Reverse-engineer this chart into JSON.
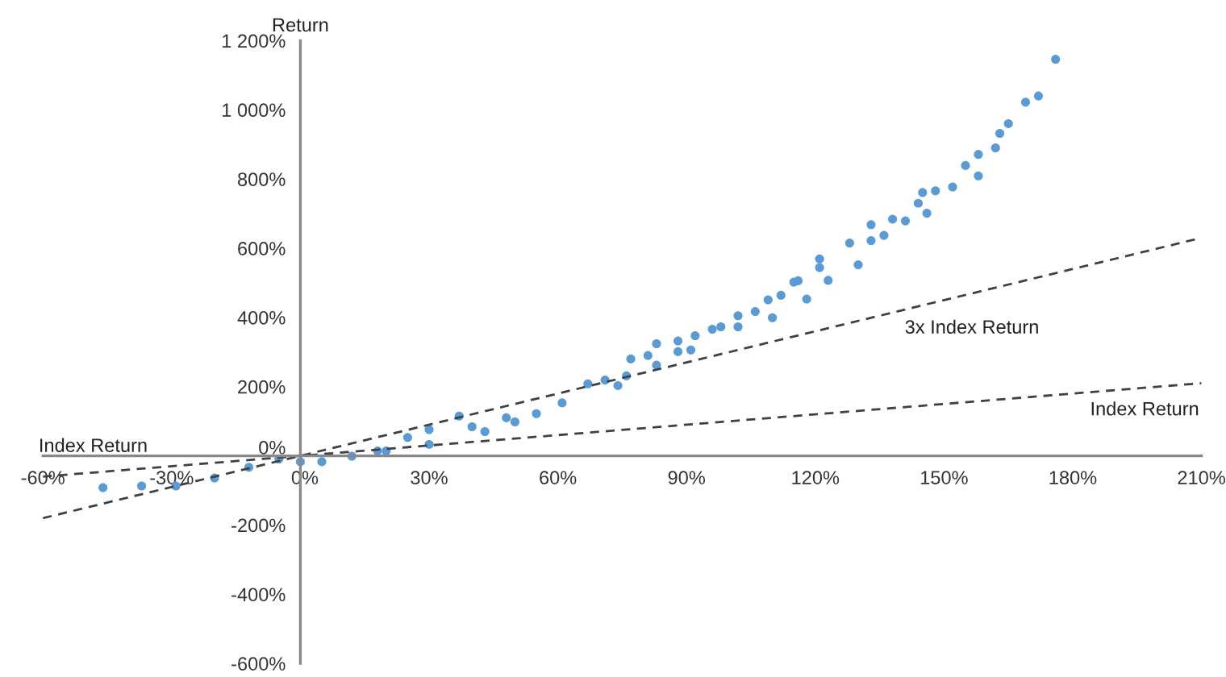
{
  "chart_data": {
    "type": "scatter",
    "xlabel": "Index Return",
    "ylabel": "Return",
    "xlim": [
      -60,
      210
    ],
    "ylim": [
      -600,
      1200
    ],
    "xticks": [
      {
        "value": -60,
        "label": "-60%"
      },
      {
        "value": -30,
        "label": "-30%"
      },
      {
        "value": 0,
        "label": "0%"
      },
      {
        "value": 30,
        "label": "30%"
      },
      {
        "value": 60,
        "label": "60%"
      },
      {
        "value": 90,
        "label": "90%"
      },
      {
        "value": 120,
        "label": "120%"
      },
      {
        "value": 150,
        "label": "150%"
      },
      {
        "value": 180,
        "label": "180%"
      },
      {
        "value": 210,
        "label": "210%"
      }
    ],
    "yticks": [
      {
        "value": -600,
        "label": "-600%"
      },
      {
        "value": -400,
        "label": "-400%"
      },
      {
        "value": -200,
        "label": "-200%"
      },
      {
        "value": 0,
        "label": "0%"
      },
      {
        "value": 200,
        "label": "200%"
      },
      {
        "value": 400,
        "label": "400%"
      },
      {
        "value": 600,
        "label": "600%"
      },
      {
        "value": 800,
        "label": "800%"
      },
      {
        "value": 1000,
        "label": "1 000%"
      },
      {
        "value": 1200,
        "label": "1 200%"
      }
    ],
    "grid": false,
    "legend": false,
    "series": [
      {
        "marker": "circle",
        "color": "#5b9bd5",
        "x": [
          -46,
          -37,
          -29,
          -20,
          -12,
          -5,
          0,
          5,
          12,
          18,
          20,
          25,
          30,
          30,
          37,
          40,
          43,
          48,
          50,
          55,
          61,
          67,
          71,
          74,
          76,
          77,
          81,
          83,
          83,
          88,
          88,
          91,
          92,
          96,
          98,
          102,
          102,
          106,
          109,
          110,
          112,
          115,
          116,
          118,
          121,
          121,
          123,
          128,
          130,
          133,
          133,
          136,
          138,
          141,
          144,
          145,
          146,
          148,
          152,
          155,
          158,
          158,
          162,
          163,
          165,
          169,
          172,
          176
        ],
        "values": [
          -92,
          -87,
          -87,
          -64,
          -33,
          -9,
          -17,
          -17,
          -1,
          14,
          14,
          53,
          76,
          33,
          115,
          84,
          70,
          110,
          98,
          122,
          153,
          208,
          219,
          203,
          231,
          280,
          290,
          324,
          262,
          332,
          301,
          306,
          347,
          366,
          373,
          373,
          405,
          417,
          451,
          399,
          464,
          502,
          506,
          453,
          544,
          569,
          507,
          615,
          552,
          622,
          668,
          637,
          684,
          679,
          730,
          761,
          701,
          766,
          777,
          839,
          809,
          871,
          890,
          932,
          960,
          1022,
          1040,
          1146
        ]
      },
      {
        "type": "line",
        "name": "3x Index Return",
        "color": "#404040",
        "line_style": "dashed",
        "x": [
          -60,
          210
        ],
        "values": [
          -180,
          630
        ]
      },
      {
        "type": "line",
        "name": "Index Return",
        "color": "#404040",
        "line_style": "dashed",
        "x": [
          -60,
          210
        ],
        "values": [
          -60,
          210
        ]
      }
    ]
  }
}
